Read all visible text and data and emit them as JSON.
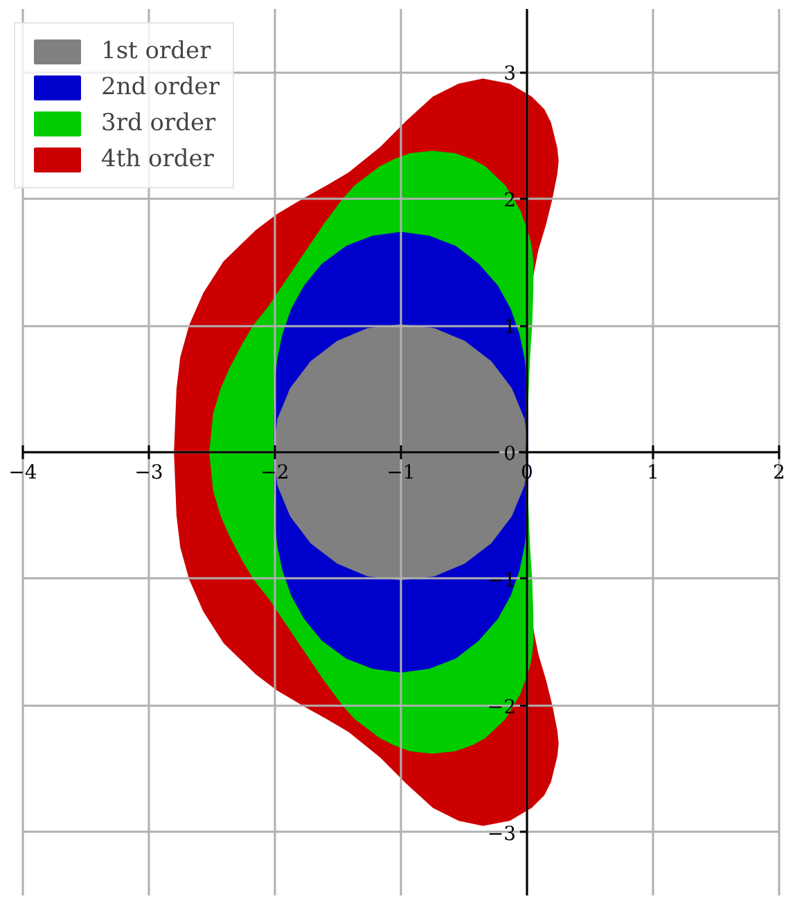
{
  "chart_data": {
    "type": "area",
    "xlim": [
      -4,
      2
    ],
    "ylim": [
      -3.5,
      3.5
    ],
    "xticks": [
      {
        "value": -4,
        "label": "−4"
      },
      {
        "value": -3,
        "label": "−3"
      },
      {
        "value": -2,
        "label": "−2"
      },
      {
        "value": -1,
        "label": "−1"
      },
      0,
      1,
      2
    ],
    "yticks": [
      {
        "value": -3,
        "label": "−3"
      },
      {
        "value": -2,
        "label": "−2"
      },
      {
        "value": -1,
        "label": "−1"
      },
      0,
      1,
      2,
      3
    ],
    "grid": true,
    "legend": "top left",
    "series": [
      {
        "name": "1st order",
        "color": "#808080",
        "x": [
          0,
          -0.03,
          -0.13,
          -0.29,
          -0.5,
          -0.74,
          -1,
          -1.26,
          -1.5,
          -1.71,
          -1.87,
          -1.97,
          -2,
          -1.97,
          -1.87,
          -1.71,
          -1.5,
          -1.26,
          -1,
          -0.74,
          -0.5,
          -0.29,
          -0.13,
          -0.03
        ],
        "values": [
          0,
          0.26,
          0.5,
          0.71,
          0.87,
          0.97,
          1,
          0.97,
          0.87,
          0.71,
          0.5,
          0.26,
          0,
          -0.26,
          -0.5,
          -0.71,
          -0.87,
          -0.97,
          -1,
          -0.97,
          -0.87,
          -0.71,
          -0.5,
          -0.26
        ]
      },
      {
        "name": "2nd order",
        "color": "#0000cc",
        "x": [
          0,
          0,
          -0.01,
          -0.03,
          -0.07,
          -0.14,
          -0.24,
          -0.39,
          -0.57,
          -0.78,
          -1,
          -1.22,
          -1.43,
          -1.62,
          -1.76,
          -1.86,
          -1.93,
          -1.97,
          -1.99,
          -2,
          -2,
          -2,
          -1.99,
          -1.97,
          -1.93,
          -1.86,
          -1.76,
          -1.62,
          -1.43,
          -1.22,
          -1,
          -0.78,
          -0.57,
          -0.39,
          -0.24,
          -0.14,
          -0.07,
          -0.03,
          -0.01,
          0
        ],
        "values": [
          0,
          0.27,
          0.57,
          0.74,
          0.93,
          1.13,
          1.31,
          1.48,
          1.62,
          1.7,
          1.73,
          1.7,
          1.62,
          1.48,
          1.31,
          1.13,
          0.93,
          0.74,
          0.57,
          0.27,
          0,
          -0.27,
          -0.57,
          -0.74,
          -0.93,
          -1.13,
          -1.31,
          -1.48,
          -1.62,
          -1.7,
          -1.73,
          -1.7,
          -1.62,
          -1.48,
          -1.31,
          -1.13,
          -0.93,
          -0.74,
          -0.57,
          -0.27
        ]
      },
      {
        "name": "3rd order",
        "color": "#00cc00",
        "x": [
          0,
          0,
          0.01,
          0.03,
          0.04,
          0.04,
          0.03,
          0.01,
          -0.06,
          -0.18,
          -0.34,
          -0.43,
          -0.57,
          -0.75,
          -0.93,
          -1.06,
          -1.16,
          -1.36,
          -1.45,
          -1.6,
          -2.04,
          -2.16,
          -2.25,
          -2.35,
          -2.42,
          -2.48,
          -2.51,
          -2.48,
          -2.42,
          -2.35,
          -2.25,
          -2.16,
          -2.04,
          -1.6,
          -1.45,
          -1.36,
          -1.16,
          -1.06,
          -0.93,
          -0.75,
          -0.57,
          -0.43,
          -0.34,
          -0.18,
          -0.06,
          0.01,
          0.03,
          0.04,
          0.04,
          0.03,
          0.01,
          0
        ],
        "values": [
          0,
          0.4,
          0.7,
          1.0,
          1.3,
          1.5,
          1.6,
          1.7,
          1.9,
          2.1,
          2.25,
          2.3,
          2.35,
          2.37,
          2.35,
          2.3,
          2.25,
          2.1,
          2.0,
          1.8,
          1.15,
          1.0,
          0.85,
          0.66,
          0.5,
          0.3,
          0,
          -0.3,
          -0.5,
          -0.66,
          -0.85,
          -1.0,
          -1.15,
          -1.8,
          -2.0,
          -2.1,
          -2.25,
          -2.3,
          -2.35,
          -2.37,
          -2.35,
          -2.3,
          -2.25,
          -2.1,
          -1.9,
          -1.7,
          -1.6,
          -1.5,
          -1.3,
          -1.0,
          -0.7,
          -0.4
        ]
      },
      {
        "name": "4th order",
        "color": "#cc0000",
        "x": [
          0,
          0,
          0.04,
          0.08,
          0.14,
          0.19,
          0.23,
          0.24,
          0.23,
          0.18,
          0.13,
          0.03,
          -0.14,
          -0.35,
          -0.54,
          -0.74,
          -0.96,
          -1.16,
          -1.41,
          -1.58,
          -1.76,
          -1.98,
          -2.14,
          -2.4,
          -2.56,
          -2.67,
          -2.74,
          -2.77,
          -2.78,
          -2.79,
          -2.78,
          -2.77,
          -2.74,
          -2.67,
          -2.56,
          -2.4,
          -2.14,
          -1.98,
          -1.76,
          -1.58,
          -1.41,
          -1.16,
          -0.96,
          -0.74,
          -0.54,
          -0.35,
          -0.14,
          0.03,
          0.13,
          0.18,
          0.23,
          0.24,
          0.23,
          0.19,
          0.14,
          0.08,
          0.04,
          0
        ],
        "values": [
          0,
          0.5,
          1.4,
          1.6,
          1.8,
          2.0,
          2.2,
          2.3,
          2.4,
          2.6,
          2.7,
          2.8,
          2.9,
          2.94,
          2.9,
          2.8,
          2.6,
          2.4,
          2.2,
          2.1,
          2.0,
          1.87,
          1.75,
          1.5,
          1.25,
          1.0,
          0.75,
          0.5,
          0.25,
          0,
          -0.25,
          -0.5,
          -0.75,
          -1.0,
          -1.25,
          -1.5,
          -1.75,
          -1.87,
          -2.0,
          -2.1,
          -2.2,
          -2.4,
          -2.6,
          -2.8,
          -2.9,
          -2.94,
          -2.9,
          -2.8,
          -2.7,
          -2.6,
          -2.4,
          -2.3,
          -2.2,
          -2.0,
          -1.8,
          -1.6,
          -1.4,
          -0.5
        ]
      }
    ]
  }
}
